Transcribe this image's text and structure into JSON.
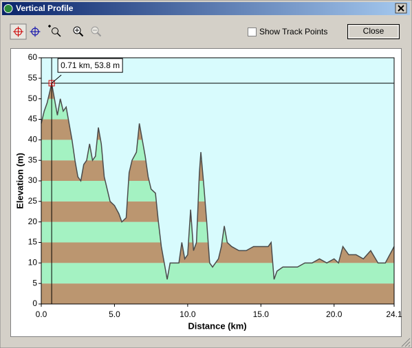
{
  "window": {
    "title": "Vertical Profile",
    "show_track_points": "Show Track Points",
    "close": "Close"
  },
  "chart_data": {
    "type": "line",
    "x_label": "Distance  (km)",
    "y_label": "Elevation (m)",
    "x": [
      0,
      0.2,
      0.4,
      0.6,
      0.71,
      0.9,
      1.1,
      1.3,
      1.5,
      1.7,
      1.9,
      2.1,
      2.3,
      2.5,
      2.7,
      2.9,
      3.1,
      3.3,
      3.5,
      3.7,
      3.9,
      4.1,
      4.3,
      4.5,
      4.7,
      5.0,
      5.3,
      5.5,
      5.8,
      6.0,
      6.2,
      6.5,
      6.7,
      6.9,
      7.1,
      7.3,
      7.5,
      7.8,
      8.0,
      8.2,
      8.5,
      8.6,
      8.8,
      9.1,
      9.4,
      9.6,
      9.8,
      10.0,
      10.2,
      10.4,
      10.6,
      10.8,
      10.9,
      11.1,
      11.3,
      11.5,
      11.7,
      11.9,
      12.1,
      12.3,
      12.5,
      12.7,
      13.0,
      13.5,
      14.0,
      14.5,
      15.0,
      15.5,
      15.7,
      15.9,
      16.1,
      16.5,
      17.0,
      17.5,
      18.0,
      18.5,
      19.0,
      19.5,
      20.0,
      20.3,
      20.6,
      21.0,
      21.5,
      22.0,
      22.5,
      23.0,
      23.5,
      24.1
    ],
    "values": [
      44,
      47,
      49,
      52,
      53.8,
      50,
      46,
      50,
      47,
      48,
      44,
      40,
      35,
      31,
      30,
      34,
      35,
      39,
      35,
      36,
      43,
      39,
      31,
      28,
      25,
      24,
      22,
      20,
      21,
      32,
      35,
      37,
      44,
      40,
      36,
      31,
      28,
      27,
      20,
      14,
      8,
      6,
      10,
      10,
      10,
      15,
      11,
      12,
      23,
      13,
      15,
      32,
      37,
      29,
      20,
      10,
      9,
      10,
      11,
      14,
      19,
      15,
      14,
      13,
      13,
      14,
      14,
      14,
      15,
      6,
      8,
      9,
      9,
      9,
      10,
      10,
      11,
      10,
      11,
      10,
      14,
      12,
      12,
      11,
      13,
      10,
      10,
      14
    ],
    "color": "#4a4a4a",
    "background": "#d8fbfd",
    "band_colors": [
      "#bb9670",
      "#a4f2c2"
    ],
    "xlim": [
      0,
      24.1
    ],
    "ylim": [
      0,
      60
    ],
    "xticks": [
      {
        "value": 0,
        "label": "0.0"
      },
      {
        "value": 5,
        "label": "5.0"
      },
      {
        "value": 10,
        "label": "10.0"
      },
      {
        "value": 15,
        "label": "15.0"
      },
      {
        "value": 20,
        "label": "20.0"
      },
      {
        "value": 24.1,
        "label": "24.1"
      }
    ],
    "yticks": [
      0,
      5,
      10,
      15,
      20,
      25,
      30,
      35,
      40,
      45,
      50,
      55,
      60
    ],
    "cursor": {
      "x": 0.71,
      "y": 53.8,
      "label": "0.71 km, 53.8 m"
    }
  }
}
